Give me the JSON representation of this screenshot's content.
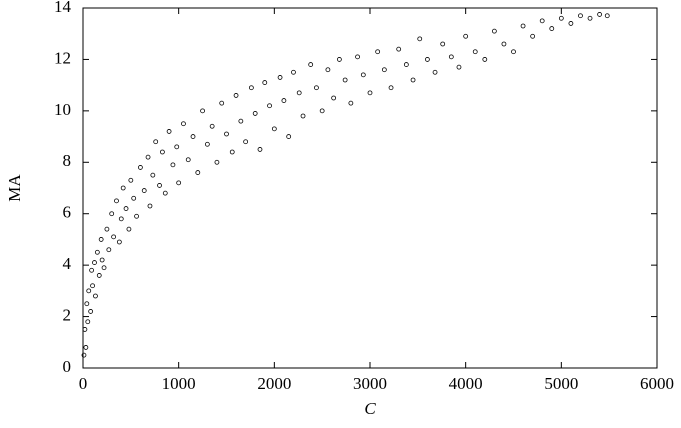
{
  "chart_data": {
    "type": "scatter",
    "xlabel": "C",
    "ylabel": "MA",
    "xlim": [
      0,
      6000
    ],
    "ylim": [
      0,
      14
    ],
    "xticks": [
      0,
      1000,
      2000,
      3000,
      4000,
      5000,
      6000
    ],
    "yticks": [
      0,
      2,
      4,
      6,
      8,
      10,
      12,
      14
    ],
    "grid": false,
    "color": "#000000",
    "x": [
      10,
      20,
      30,
      40,
      50,
      60,
      80,
      90,
      100,
      120,
      130,
      150,
      170,
      190,
      200,
      220,
      250,
      270,
      300,
      320,
      350,
      380,
      400,
      420,
      450,
      480,
      500,
      530,
      560,
      600,
      640,
      680,
      700,
      730,
      760,
      800,
      830,
      860,
      900,
      940,
      980,
      1000,
      1050,
      1100,
      1150,
      1200,
      1250,
      1300,
      1350,
      1400,
      1450,
      1500,
      1560,
      1600,
      1650,
      1700,
      1760,
      1800,
      1850,
      1900,
      1950,
      2000,
      2060,
      2100,
      2150,
      2200,
      2260,
      2300,
      2380,
      2440,
      2500,
      2560,
      2620,
      2680,
      2740,
      2800,
      2870,
      2930,
      3000,
      3080,
      3150,
      3220,
      3300,
      3380,
      3450,
      3520,
      3600,
      3680,
      3760,
      3850,
      3930,
      4000,
      4100,
      4200,
      4300,
      4400,
      4500,
      4600,
      4700,
      4800,
      4900,
      5000,
      5100,
      5200,
      5300,
      5400,
      5480
    ],
    "y": [
      0.5,
      1.5,
      0.8,
      2.5,
      1.8,
      3.0,
      2.2,
      3.8,
      3.2,
      4.1,
      2.8,
      4.5,
      3.6,
      5.0,
      4.2,
      3.9,
      5.4,
      4.6,
      6.0,
      5.1,
      6.5,
      4.9,
      5.8,
      7.0,
      6.2,
      5.4,
      7.3,
      6.6,
      5.9,
      7.8,
      6.9,
      8.2,
      6.3,
      7.5,
      8.8,
      7.1,
      8.4,
      6.8,
      9.2,
      7.9,
      8.6,
      7.2,
      9.5,
      8.1,
      9.0,
      7.6,
      10.0,
      8.7,
      9.4,
      8.0,
      10.3,
      9.1,
      8.4,
      10.6,
      9.6,
      8.8,
      10.9,
      9.9,
      8.5,
      11.1,
      10.2,
      9.3,
      11.3,
      10.4,
      9.0,
      11.5,
      10.7,
      9.8,
      11.8,
      10.9,
      10.0,
      11.6,
      10.5,
      12.0,
      11.2,
      10.3,
      12.1,
      11.4,
      10.7,
      12.3,
      11.6,
      10.9,
      12.4,
      11.8,
      11.2,
      12.8,
      12.0,
      11.5,
      12.6,
      12.1,
      11.7,
      12.9,
      12.3,
      12.0,
      13.1,
      12.6,
      12.3,
      13.3,
      12.9,
      13.5,
      13.2,
      13.6,
      13.4,
      13.7,
      13.6,
      13.75,
      13.7
    ]
  }
}
